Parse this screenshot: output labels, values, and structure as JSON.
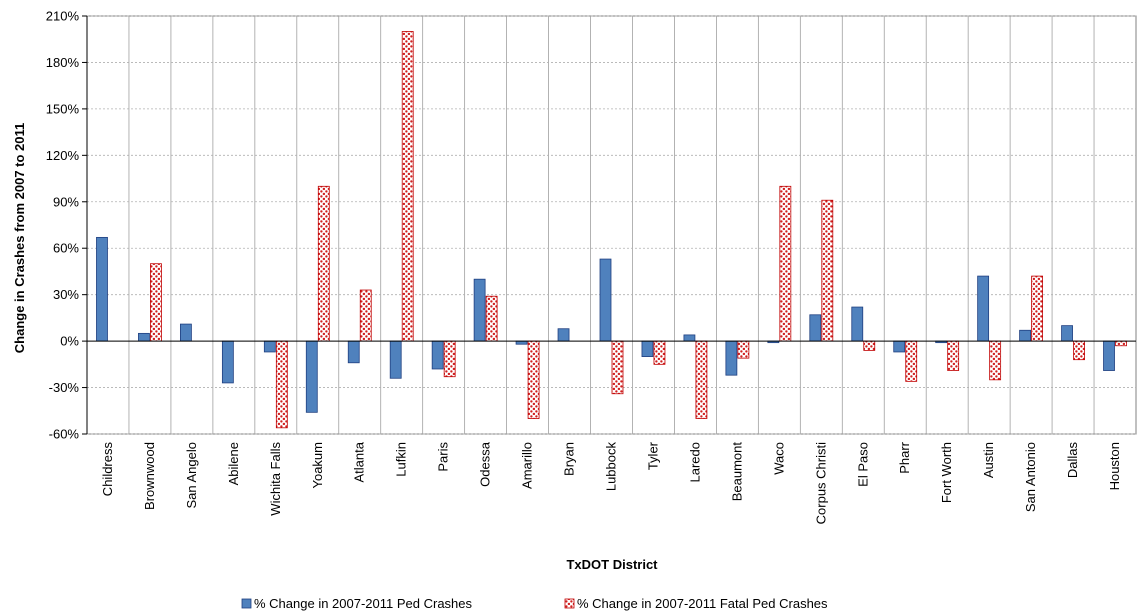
{
  "chart_data": {
    "type": "bar",
    "title": "",
    "xlabel": "TxDOT District",
    "ylabel": "Change in Crashes from 2007 to 2011",
    "ylim": [
      -60,
      210
    ],
    "yticks": [
      -60,
      -30,
      0,
      30,
      60,
      90,
      120,
      150,
      180,
      210
    ],
    "ytick_labels": [
      "-60%",
      "-30%",
      "0%",
      "30%",
      "60%",
      "90%",
      "120%",
      "150%",
      "180%",
      "210%"
    ],
    "grid": "horizontal",
    "legend_position": "bottom",
    "categories": [
      "Childress",
      "Brownwood",
      "San Angelo",
      "Abilene",
      "Wichita Falls",
      "Yoakum",
      "Atlanta",
      "Lufkin",
      "Paris",
      "Odessa",
      "Amarillo",
      "Bryan",
      "Lubbock",
      "Tyler",
      "Laredo",
      "Beaumont",
      "Waco",
      "Corpus Christi",
      "El Paso",
      "Pharr",
      "Fort Worth",
      "Austin",
      "San Antonio",
      "Dallas",
      "Houston"
    ],
    "series": [
      {
        "name": "% Change in 2007-2011 Ped Crashes",
        "color": "#4f81bd",
        "pattern": "solid",
        "values": [
          67,
          5,
          11,
          -27,
          -7,
          -46,
          -14,
          -24,
          -18,
          40,
          -2,
          8,
          53,
          -10,
          4,
          -22,
          -1,
          17,
          22,
          -7,
          -1,
          42,
          7,
          10,
          -19
        ]
      },
      {
        "name": "% Change in 2007-2011 Fatal Ped Crashes",
        "color": "#c0504d",
        "pattern": "dotted",
        "values": [
          0,
          50,
          0,
          0,
          -56,
          100,
          33,
          200,
          -23,
          29,
          -50,
          0,
          -34,
          -15,
          -50,
          -11,
          100,
          91,
          -6,
          -26,
          -19,
          -25,
          42,
          -12,
          -3
        ]
      }
    ]
  }
}
